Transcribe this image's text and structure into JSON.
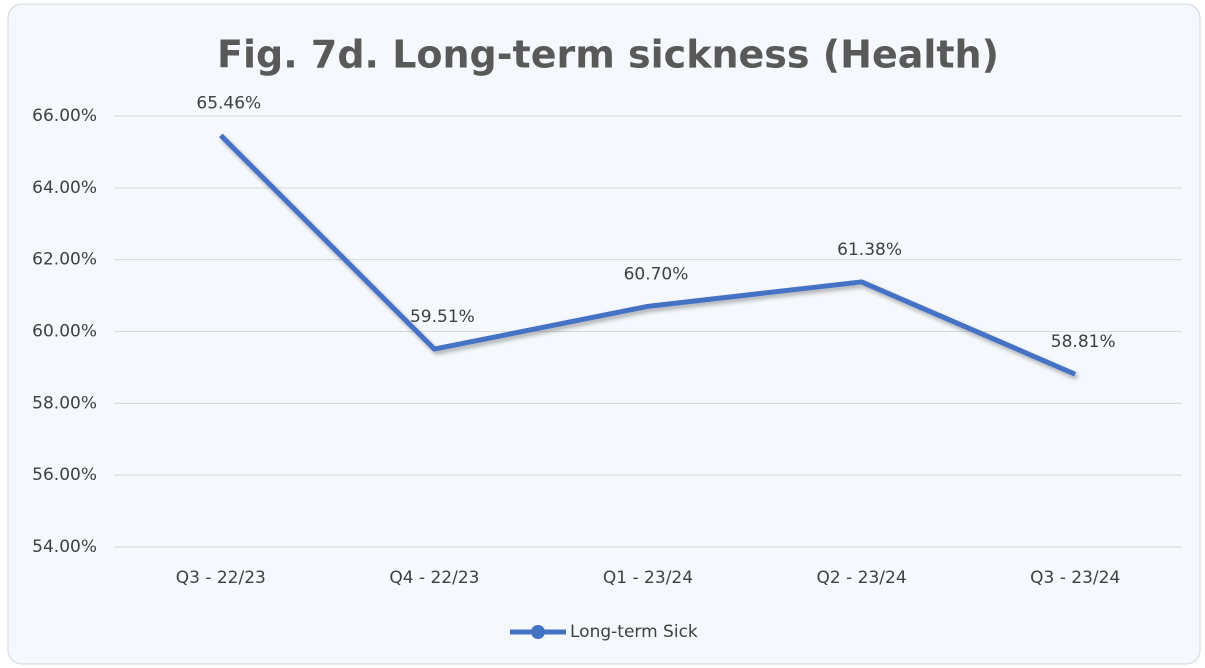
{
  "chart_data": {
    "type": "line",
    "title": "Fig. 7d. Long-term sickness (Health)",
    "categories": [
      "Q3 - 22/23",
      "Q4 - 22/23",
      "Q1 - 23/24",
      "Q2 - 23/24",
      "Q3 - 23/24"
    ],
    "series": [
      {
        "name": "Long-term Sick",
        "color": "#4472c4",
        "values": [
          65.46,
          59.51,
          60.7,
          61.38,
          58.81
        ],
        "value_labels": [
          "65.46%",
          "59.51%",
          "60.70%",
          "61.38%",
          "58.81%"
        ]
      }
    ],
    "ylim": [
      54,
      66
    ],
    "yticks": [
      {
        "value": 54,
        "label": "54.00%"
      },
      {
        "value": 56,
        "label": "56.00%"
      },
      {
        "value": 58,
        "label": "58.00%"
      },
      {
        "value": 60,
        "label": "60.00%"
      },
      {
        "value": 62,
        "label": "62.00%"
      },
      {
        "value": 64,
        "label": "64.00%"
      },
      {
        "value": 66,
        "label": "66.00%"
      }
    ],
    "grid": true,
    "legend": "bottom"
  }
}
